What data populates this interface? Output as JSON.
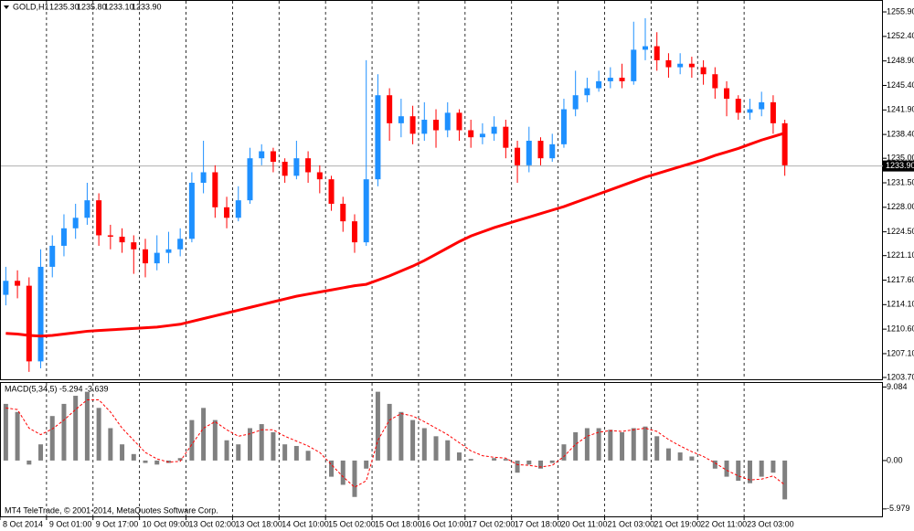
{
  "header": {
    "symbol": "GOLD,H1",
    "open": "1235.30",
    "high": "1235.80",
    "low": "1233.10",
    "close": "1233.90"
  },
  "footer": "MT4 TeleTrade, © 2001-2014, MetaQuotes Software Corp.",
  "chart_data": [
    {
      "type": "candlestick",
      "categories": [
        "8 Oct 2014",
        null,
        null,
        null,
        "9 Oct 01:00",
        null,
        null,
        null,
        "9 Oct 17:00",
        null,
        null,
        null,
        "10 Oct 09:00",
        null,
        null,
        null,
        "13 Oct 02:00",
        null,
        null,
        null,
        "13 Oct 18:00",
        null,
        null,
        null,
        "14 Oct 10:00",
        null,
        null,
        null,
        "15 Oct 02:00",
        null,
        null,
        null,
        "15 Oct 18:00",
        null,
        null,
        null,
        "16 Oct 10:00",
        null,
        null,
        null,
        "17 Oct 02:00",
        null,
        null,
        null,
        "17 Oct 18:00",
        null,
        null,
        null,
        "20 Oct 11:00",
        null,
        null,
        null,
        "21 Oct 03:00",
        null,
        null,
        null,
        "21 Oct 19:00",
        null,
        null,
        null,
        "22 Oct 11:00",
        null,
        null,
        null,
        "23 Oct 03:00",
        null,
        null,
        null
      ],
      "open": [
        1215.5,
        1217.5,
        1216.8,
        1206.0,
        1219.5,
        1222.5,
        1225.0,
        1226.5,
        1229.0,
        1224.0,
        1223.8,
        1223.0,
        1222.0,
        1220.0,
        1221.5,
        1222.0,
        1223.5,
        1231.5,
        1233.0,
        1228.0,
        1226.5,
        1229.0,
        1235.0,
        1236.0,
        1234.5,
        1232.5,
        1235.0,
        1233.0,
        1232.0,
        1228.5,
        1226.0,
        1223.0,
        1232.0,
        1244.0,
        1240.0,
        1241.0,
        1238.5,
        1240.5,
        1239.0,
        1241.5,
        1239.0,
        1238.0,
        1238.5,
        1239.5,
        1236.5,
        1234.0,
        1237.5,
        1235.0,
        1237.0,
        1242.0,
        1244.0,
        1245.0,
        1246.0,
        1246.5,
        1246.0,
        1250.5,
        1251.0,
        1249.0,
        1248.0,
        1248.5,
        1248.0,
        1247.0,
        1245.0,
        1243.5,
        1241.5,
        1242.0,
        1243.0,
        1240.0
      ],
      "high": [
        1219.5,
        1219.0,
        1218.0,
        1222.0,
        1224.0,
        1227.0,
        1228.5,
        1231.5,
        1230.0,
        1225.5,
        1225.0,
        1224.0,
        1223.5,
        1224.0,
        1224.5,
        1225.0,
        1233.0,
        1237.5,
        1234.0,
        1229.5,
        1231.0,
        1236.5,
        1237.0,
        1236.5,
        1235.0,
        1237.5,
        1236.0,
        1234.0,
        1232.5,
        1229.5,
        1227.0,
        1249.0,
        1247.0,
        1245.0,
        1243.5,
        1242.5,
        1243.0,
        1242.0,
        1243.0,
        1242.0,
        1240.5,
        1240.0,
        1241.0,
        1240.5,
        1237.5,
        1239.5,
        1238.0,
        1238.5,
        1243.5,
        1247.5,
        1246.5,
        1247.5,
        1248.0,
        1248.5,
        1254.5,
        1255.0,
        1253.0,
        1250.0,
        1250.0,
        1249.5,
        1249.0,
        1248.0,
        1246.0,
        1244.0,
        1243.5,
        1244.5,
        1244.0,
        1240.5
      ],
      "low": [
        1214.0,
        1215.0,
        1204.5,
        1205.0,
        1218.0,
        1221.0,
        1223.5,
        1225.5,
        1222.5,
        1222.0,
        1221.5,
        1218.5,
        1218.0,
        1219.0,
        1220.0,
        1221.0,
        1223.0,
        1230.0,
        1226.5,
        1225.0,
        1226.0,
        1228.5,
        1234.0,
        1233.0,
        1231.5,
        1232.0,
        1231.5,
        1230.0,
        1227.5,
        1224.5,
        1221.5,
        1222.5,
        1231.0,
        1237.5,
        1238.0,
        1237.0,
        1237.5,
        1236.5,
        1238.0,
        1237.5,
        1236.5,
        1237.0,
        1237.5,
        1235.0,
        1231.5,
        1233.0,
        1234.0,
        1234.5,
        1236.5,
        1241.0,
        1243.0,
        1244.5,
        1245.0,
        1245.0,
        1245.5,
        1249.0,
        1247.5,
        1246.5,
        1247.0,
        1246.5,
        1245.5,
        1243.5,
        1241.0,
        1240.5,
        1240.5,
        1241.0,
        1238.5,
        1232.5
      ],
      "close": [
        1217.5,
        1216.8,
        1206.0,
        1219.5,
        1222.5,
        1225.0,
        1226.5,
        1229.0,
        1224.0,
        1223.8,
        1223.0,
        1222.0,
        1220.0,
        1221.5,
        1222.0,
        1223.5,
        1231.5,
        1233.0,
        1228.0,
        1226.5,
        1229.0,
        1235.0,
        1236.0,
        1234.5,
        1232.5,
        1235.0,
        1233.0,
        1232.0,
        1228.5,
        1226.0,
        1223.0,
        1232.0,
        1244.0,
        1240.0,
        1241.0,
        1238.5,
        1240.5,
        1239.0,
        1241.5,
        1239.0,
        1238.0,
        1238.5,
        1239.5,
        1236.5,
        1234.0,
        1237.5,
        1235.0,
        1237.0,
        1242.0,
        1244.0,
        1245.0,
        1246.0,
        1246.5,
        1246.0,
        1250.5,
        1251.0,
        1249.0,
        1248.0,
        1248.5,
        1248.0,
        1247.0,
        1245.0,
        1243.5,
        1241.5,
        1242.0,
        1243.0,
        1240.0,
        1234.0
      ],
      "up_color": "#1e90ff",
      "down_color": "#ff0000",
      "lines": [
        {
          "color": "#ff0000",
          "values": [
            1210.0,
            1209.9,
            1209.7,
            1209.6,
            1209.7,
            1209.9,
            1210.1,
            1210.3,
            1210.4,
            1210.5,
            1210.6,
            1210.7,
            1210.8,
            1210.9,
            1211.1,
            1211.3,
            1211.7,
            1212.1,
            1212.5,
            1212.9,
            1213.3,
            1213.7,
            1214.1,
            1214.5,
            1214.9,
            1215.3,
            1215.6,
            1215.9,
            1216.2,
            1216.5,
            1216.8,
            1217.0,
            1217.6,
            1218.2,
            1218.9,
            1219.6,
            1220.4,
            1221.3,
            1222.2,
            1223.1,
            1223.9,
            1224.5,
            1225.1,
            1225.6,
            1226.1,
            1226.6,
            1227.1,
            1227.6,
            1228.1,
            1228.7,
            1229.3,
            1229.9,
            1230.5,
            1231.1,
            1231.7,
            1232.3,
            1232.8,
            1233.3,
            1233.8,
            1234.3,
            1234.8,
            1235.4,
            1235.9,
            1236.4,
            1237.0,
            1237.6,
            1238.1,
            1238.6
          ]
        }
      ],
      "current_price": {
        "value": 1233.9,
        "label": "1233.90"
      },
      "ylim": [
        1203.44,
        1257.6
      ],
      "yticks": [
        {
          "value": 1255.9,
          "label": "1255.90"
        },
        {
          "value": 1252.4,
          "label": "1252.40"
        },
        {
          "value": 1248.9,
          "label": "1248.90"
        },
        {
          "value": 1245.4,
          "label": "1245.40"
        },
        {
          "value": 1241.9,
          "label": "1241.90"
        },
        {
          "value": 1238.4,
          "label": "1238.40"
        },
        {
          "value": 1235.0,
          "label": "1235.00"
        },
        {
          "value": 1231.5,
          "label": "1231.50"
        },
        {
          "value": 1228.0,
          "label": "1228.00"
        },
        {
          "value": 1224.5,
          "label": "1224.50"
        },
        {
          "value": 1221.1,
          "label": "1221.10"
        },
        {
          "value": 1217.6,
          "label": "1217.60"
        },
        {
          "value": 1214.1,
          "label": "1214.10"
        },
        {
          "value": 1210.6,
          "label": "1210.60"
        },
        {
          "value": 1207.1,
          "label": "1207.10"
        },
        {
          "value": 1203.7,
          "label": "1203.70"
        }
      ]
    },
    {
      "type": "bar",
      "title": "MACD(5,34,5) -5.294 -3.639",
      "color": "#808080",
      "values": [
        7.0,
        6.0,
        -0.5,
        2.0,
        5.5,
        7.0,
        8.0,
        8.5,
        6.5,
        4.0,
        2.0,
        0.8,
        -0.3,
        -0.5,
        -0.3,
        0.3,
        5.0,
        6.5,
        5.0,
        2.5,
        2.0,
        4.0,
        4.5,
        3.5,
        2.0,
        1.8,
        1.2,
        0.0,
        -2.0,
        -3.0,
        -4.5,
        -1.0,
        8.5,
        7.0,
        6.0,
        5.0,
        4.0,
        3.0,
        2.5,
        1.0,
        0.2,
        0.0,
        0.3,
        0.2,
        -1.5,
        -0.5,
        -1.0,
        -0.3,
        2.0,
        3.5,
        4.0,
        4.0,
        3.8,
        3.5,
        4.0,
        4.2,
        3.0,
        1.5,
        1.0,
        0.5,
        0.0,
        -1.0,
        -2.0,
        -2.5,
        -2.8,
        -2.0,
        -1.5,
        -4.8
      ],
      "signal": {
        "color": "#ff0000",
        "values": [
          6.5,
          6.3,
          4.0,
          3.2,
          3.9,
          5.0,
          6.3,
          7.5,
          7.5,
          6.0,
          4.0,
          2.5,
          1.0,
          0.2,
          -0.2,
          -0.1,
          2.0,
          4.0,
          4.8,
          3.8,
          3.0,
          3.3,
          3.8,
          3.8,
          3.0,
          2.4,
          1.8,
          1.0,
          -0.5,
          -2.0,
          -3.3,
          -2.5,
          2.5,
          5.0,
          5.8,
          5.5,
          4.8,
          4.0,
          3.2,
          2.2,
          1.2,
          0.6,
          0.4,
          0.3,
          -0.5,
          -0.6,
          -0.8,
          -0.6,
          0.5,
          2.0,
          3.0,
          3.5,
          3.7,
          3.6,
          3.8,
          4.0,
          3.6,
          2.6,
          1.8,
          1.1,
          0.5,
          -0.3,
          -1.2,
          -1.9,
          -2.4,
          -2.3,
          -1.9,
          -3.0
        ]
      },
      "ylim": [
        -6.9,
        9.7
      ],
      "yticks": [
        {
          "value": 9.084,
          "label": "9.084"
        },
        {
          "value": 0,
          "label": "0.00"
        },
        {
          "value": -5.979,
          "label": "-5.979"
        }
      ]
    }
  ]
}
